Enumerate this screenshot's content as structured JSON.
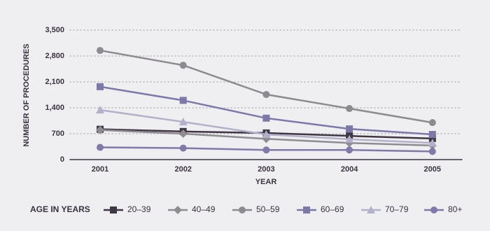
{
  "chart_data": {
    "type": "line",
    "y_label": "NUMBER OF PROCEDURES",
    "x_label": "YEAR",
    "legend_title": "AGE IN YEARS",
    "categories": [
      "2001",
      "2002",
      "2003",
      "2004",
      "2005"
    ],
    "ylim": [
      0,
      3500
    ],
    "yticks": [
      0,
      700,
      {
        "value": 1400,
        "label": "1,400"
      },
      {
        "value": 2100,
        "label": "2,100"
      },
      {
        "value": 2800,
        "label": "2,800"
      },
      {
        "value": 3500,
        "label": "3,500"
      }
    ],
    "grid": true,
    "series": [
      {
        "name": "20–39",
        "color": "#3f3744",
        "marker": "square",
        "values": [
          820,
          760,
          720,
          640,
          570
        ]
      },
      {
        "name": "40–49",
        "color": "#8f8c91",
        "marker": "diamond",
        "values": [
          800,
          700,
          560,
          450,
          380
        ]
      },
      {
        "name": "50–59",
        "color": "#8e8b90",
        "marker": "circle",
        "values": [
          2950,
          2550,
          1760,
          1380,
          1000
        ]
      },
      {
        "name": "60–69",
        "color": "#7c78aa",
        "marker": "square",
        "values": [
          1970,
          1600,
          1120,
          830,
          680
        ]
      },
      {
        "name": "70–79",
        "color": "#b3b0cb",
        "marker": "triangle",
        "values": [
          1340,
          1020,
          680,
          550,
          450
        ]
      },
      {
        "name": "80+",
        "color": "#8079aa",
        "marker": "circle",
        "values": [
          330,
          310,
          260,
          260,
          220
        ]
      }
    ]
  }
}
